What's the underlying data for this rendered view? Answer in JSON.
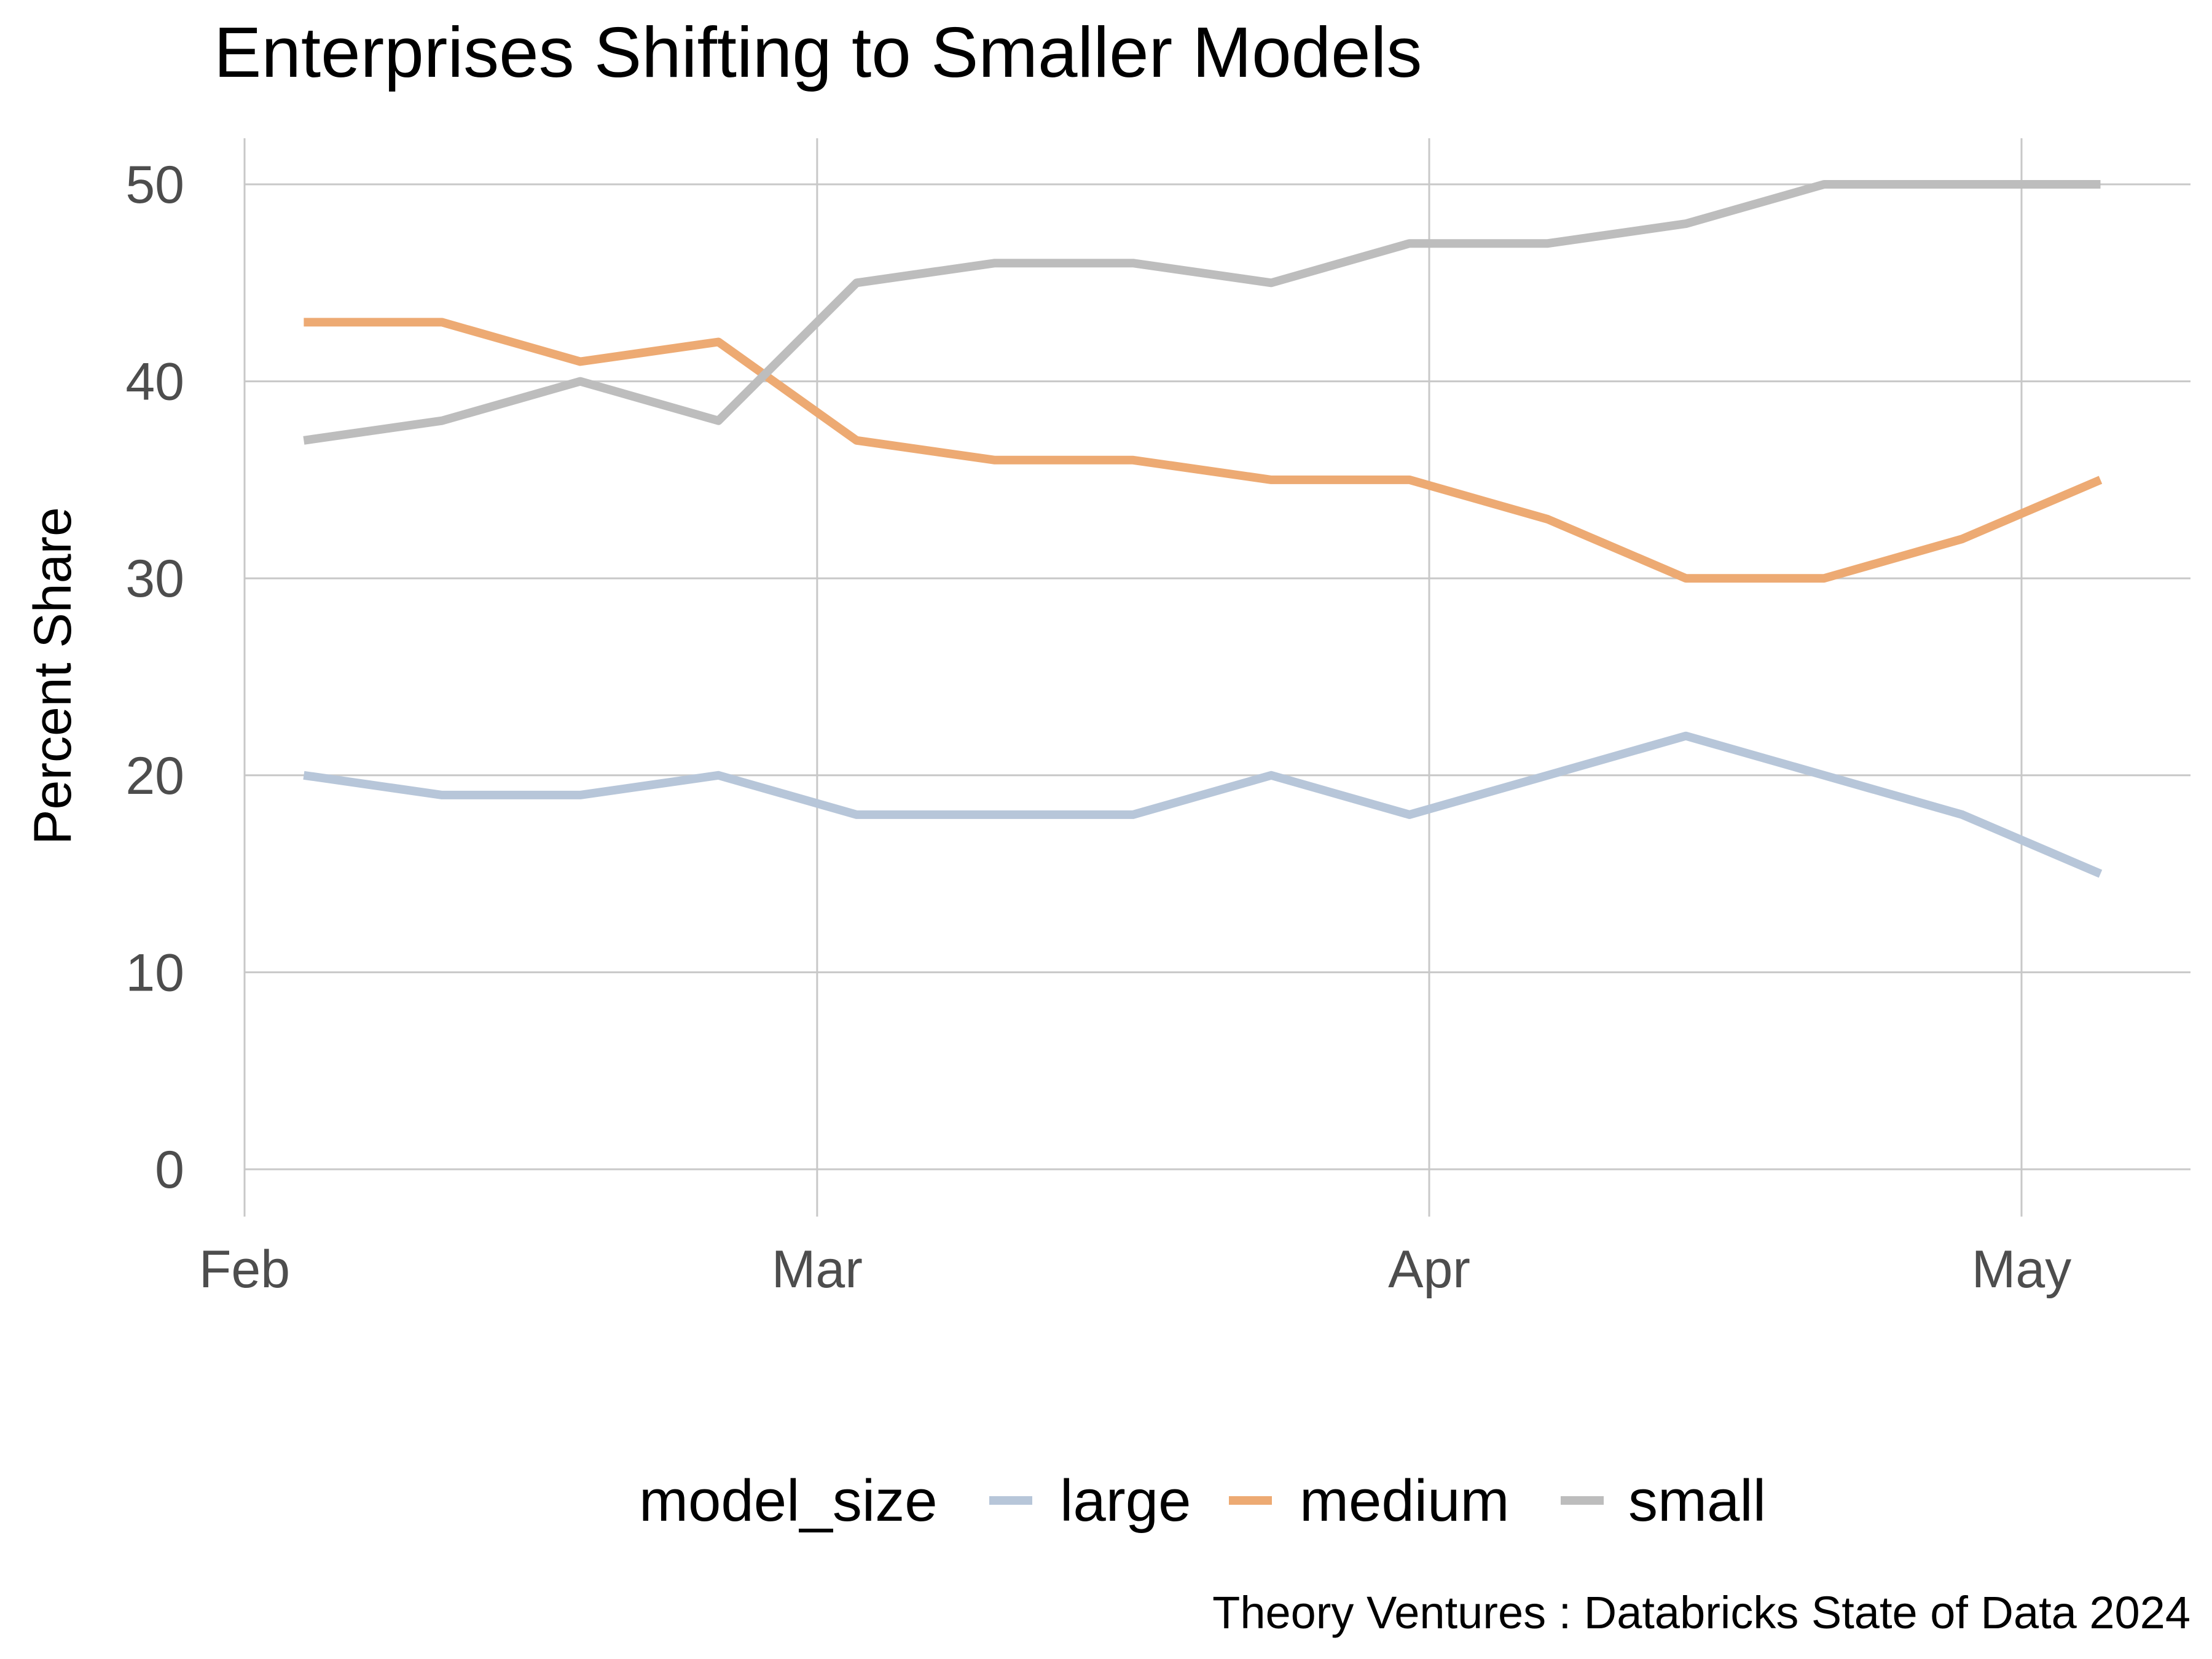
{
  "chart_data": {
    "type": "line",
    "title": "Enterprises Shifting to Smaller Models",
    "xlabel": "",
    "ylabel": "Percent Share",
    "ylim": [
      0,
      52
    ],
    "yticks": [
      0,
      10,
      20,
      30,
      40,
      50
    ],
    "x_tick_labels": [
      {
        "label": "Feb",
        "at": "2024-02-01"
      },
      {
        "label": "Mar",
        "at": "2024-03-01"
      },
      {
        "label": "Apr",
        "at": "2024-04-01"
      },
      {
        "label": "May",
        "at": "2024-05-01"
      }
    ],
    "x": [
      "2024-02-04",
      "2024-02-11",
      "2024-02-18",
      "2024-02-25",
      "2024-03-03",
      "2024-03-10",
      "2024-03-17",
      "2024-03-24",
      "2024-03-31",
      "2024-04-07",
      "2024-04-14",
      "2024-04-21",
      "2024-04-28",
      "2024-05-05"
    ],
    "legend_title": "model_size",
    "legend_position": "bottom",
    "grid": true,
    "series": [
      {
        "name": "large",
        "color": "#b7c6d9",
        "values": [
          20,
          19,
          19,
          20,
          18,
          18,
          18,
          20,
          18,
          20,
          22,
          20,
          18,
          15
        ]
      },
      {
        "name": "medium",
        "color": "#edaa73",
        "values": [
          43,
          43,
          41,
          42,
          37,
          36,
          36,
          35,
          35,
          33,
          30,
          30,
          32,
          35
        ]
      },
      {
        "name": "small",
        "color": "#bdbdbd",
        "values": [
          37,
          38,
          40,
          38,
          45,
          46,
          46,
          45,
          47,
          47,
          48,
          50,
          50,
          50
        ]
      }
    ],
    "caption": "Theory Ventures : Databricks State of Data 2024"
  }
}
